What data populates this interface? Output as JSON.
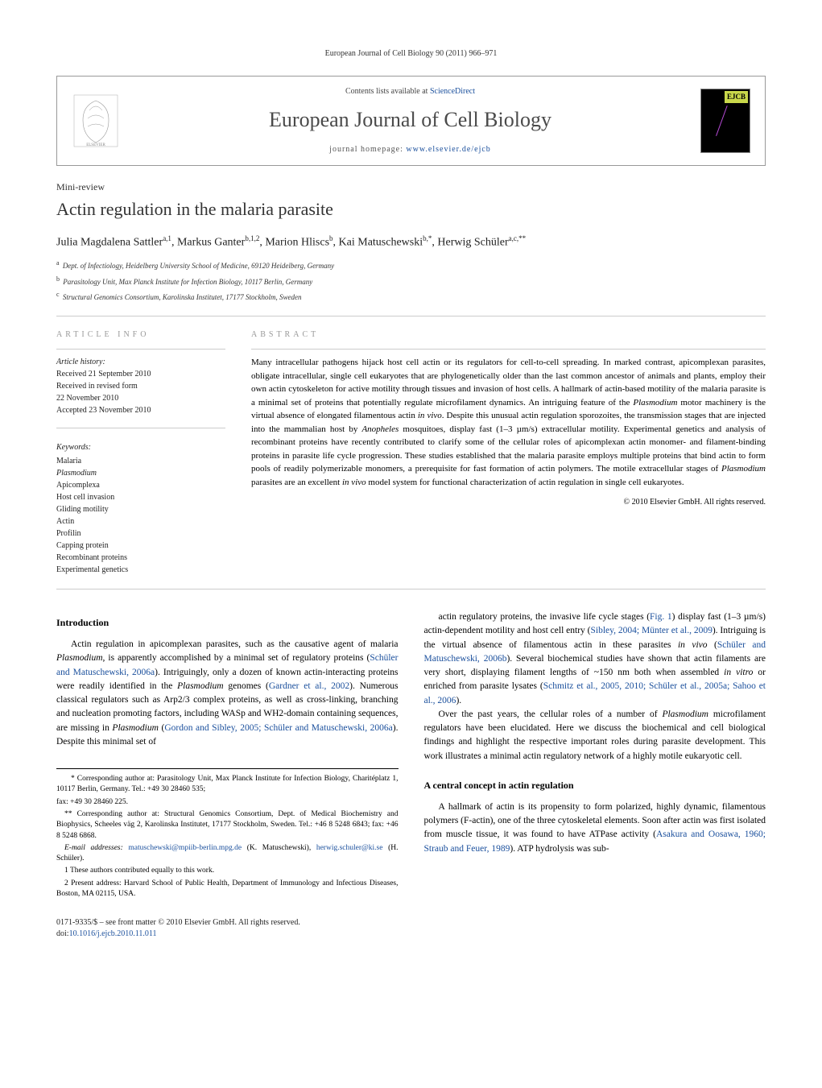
{
  "header_citation": "European Journal of Cell Biology 90 (2011) 966–971",
  "journal_box": {
    "contents_prefix": "Contents lists available at ",
    "contents_link": "ScienceDirect",
    "journal_name": "European Journal of Cell Biology",
    "homepage_prefix": "journal homepage: ",
    "homepage_url": "www.elsevier.de/ejcb",
    "cover_label": "EJCB"
  },
  "article": {
    "type": "Mini-review",
    "title": "Actin regulation in the malaria parasite"
  },
  "authors_html": "Julia Magdalena Sattler<sup>a,1</sup>, Markus Ganter<sup>b,1,2</sup>, Marion Hliscs<sup>b</sup>, Kai Matuschewski<sup>b,*</sup>, Herwig Schüler<sup>a,c,**</sup>",
  "affiliations": [
    {
      "sup": "a",
      "text": "Dept. of Infectiology, Heidelberg University School of Medicine, 69120 Heidelberg, Germany"
    },
    {
      "sup": "b",
      "text": "Parasitology Unit, Max Planck Institute for Infection Biology, 10117 Berlin, Germany"
    },
    {
      "sup": "c",
      "text": "Structural Genomics Consortium, Karolinska Institutet, 17177 Stockholm, Sweden"
    }
  ],
  "info_label": "ARTICLE INFO",
  "abstract_label": "ABSTRACT",
  "history": {
    "label": "Article history:",
    "received": "Received 21 September 2010",
    "revised_1": "Received in revised form",
    "revised_2": "22 November 2010",
    "accepted": "Accepted 23 November 2010"
  },
  "keywords": {
    "label": "Keywords:",
    "items": [
      "Malaria",
      "Plasmodium",
      "Apicomplexa",
      "Host cell invasion",
      "Gliding motility",
      "Actin",
      "Profilin",
      "Capping protein",
      "Recombinant proteins",
      "Experimental genetics"
    ]
  },
  "abstract": "Many intracellular pathogens hijack host cell actin or its regulators for cell-to-cell spreading. In marked contrast, apicomplexan parasites, obligate intracellular, single cell eukaryotes that are phylogenetically older than the last common ancestor of animals and plants, employ their own actin cytoskeleton for active motility through tissues and invasion of host cells. A hallmark of actin-based motility of the malaria parasite is a minimal set of proteins that potentially regulate microfilament dynamics. An intriguing feature of the Plasmodium motor machinery is the virtual absence of elongated filamentous actin in vivo. Despite this unusual actin regulation sporozoites, the transmission stages that are injected into the mammalian host by Anopheles mosquitoes, display fast (1–3 µm/s) extracellular motility. Experimental genetics and analysis of recombinant proteins have recently contributed to clarify some of the cellular roles of apicomplexan actin monomer- and filament-binding proteins in parasite life cycle progression. These studies established that the malaria parasite employs multiple proteins that bind actin to form pools of readily polymerizable monomers, a prerequisite for fast formation of actin polymers. The motile extracellular stages of Plasmodium parasites are an excellent in vivo model system for functional characterization of actin regulation in single cell eukaryotes.",
  "copyright": "© 2010 Elsevier GmbH. All rights reserved.",
  "body": {
    "left": {
      "heading": "Introduction",
      "p1_pre": "Actin regulation in apicomplexan parasites, such as the causative agent of malaria ",
      "p1_em1": "Plasmodium",
      "p1_mid1": ", is apparently accomplished by a minimal set of regulatory proteins (",
      "p1_link1": "Schüler and Matuschewski, 2006a",
      "p1_mid2": "). Intriguingly, only a dozen of known actin-interacting proteins were readily identified in the ",
      "p1_em2": "Plasmodium",
      "p1_mid3": " genomes (",
      "p1_link2": "Gardner et al., 2002",
      "p1_mid4": "). Numerous classical regulators such as Arp2/3 complex proteins, as well as cross-linking, branching and nucleation promoting factors, including WASp and WH2-domain containing sequences, are missing in ",
      "p1_em3": "Plasmodium",
      "p1_mid5": " (",
      "p1_link3": "Gordon and Sibley, 2005; Schüler and Matuschewski, 2006a",
      "p1_mid6": "). Despite this minimal set of"
    },
    "right": {
      "p1_pre": "actin regulatory proteins, the invasive life cycle stages (",
      "p1_link0": "Fig. 1",
      "p1_mid0": ") display fast (1–3 µm/s) actin-dependent motility and host cell entry (",
      "p1_link1": "Sibley, 2004; Münter et al., 2009",
      "p1_mid1": "). Intriguing is the virtual absence of filamentous actin in these parasites ",
      "p1_em1": "in vivo",
      "p1_mid2": " (",
      "p1_link2": "Schüler and Matuschewski, 2006b",
      "p1_mid3": "). Several biochemical studies have shown that actin filaments are very short, displaying filament lengths of ~150 nm both when assembled ",
      "p1_em2": "in vitro",
      "p1_mid4": " or enriched from parasite lysates (",
      "p1_link3": "Schmitz et al., 2005, 2010; Schüler et al., 2005a; Sahoo et al., 2006",
      "p1_post": ").",
      "p2_pre": "Over the past years, the cellular roles of a number of ",
      "p2_em1": "Plasmodium",
      "p2_post": " microfilament regulators have been elucidated. Here we discuss the biochemical and cell biological findings and highlight the respective important roles during parasite development. This work illustrates a minimal actin regulatory network of a highly motile eukaryotic cell.",
      "heading": "A central concept in actin regulation",
      "p3_pre": "A hallmark of actin is its propensity to form polarized, highly dynamic, filamentous polymers (F-actin), one of the three cytoskeletal elements. Soon after actin was first isolated from muscle tissue, it was found to have ATPase activity (",
      "p3_link1": "Asakura and Oosawa, 1960; Straub and Feuer, 1989",
      "p3_post": "). ATP hydrolysis was sub-"
    }
  },
  "footnotes": {
    "star1_pre": "* Corresponding author at: Parasitology Unit, Max Planck Institute for Infection Biology, Charitéplatz 1, 10117 Berlin, Germany. Tel.: +49 30 28460 535;",
    "star1_fax": "fax: +49 30 28460 225.",
    "star2": "** Corresponding author at: Structural Genomics Consortium, Dept. of Medical Biochemistry and Biophysics, Scheeles väg 2, Karolinska Institutet, 17177 Stockholm, Sweden. Tel.: +46 8 5248 6843; fax: +46 8 5248 6868.",
    "email_label": "E-mail addresses:",
    "email1": "matuschewski@mpiib-berlin.mpg.de",
    "email1_who": " (K. Matuschewski),",
    "email2": "herwig.schuler@ki.se",
    "email2_who": " (H. Schüler).",
    "fn1": "1  These authors contributed equally to this work.",
    "fn2": "2  Present address: Harvard School of Public Health, Department of Immunology and Infectious Diseases, Boston, MA 02115, USA."
  },
  "footer": {
    "issn": "0171-9335/$ – see front matter © 2010 Elsevier GmbH. All rights reserved.",
    "doi_label": "doi:",
    "doi": "10.1016/j.ejcb.2010.11.011"
  },
  "colors": {
    "link": "#1a4f9c",
    "text": "#000000",
    "muted": "#999999",
    "border": "#cccccc"
  },
  "typography": {
    "body_pt": 11.5,
    "title_pt": 22,
    "journal_pt": 26,
    "small_pt": 10,
    "footnote_pt": 9.5
  }
}
